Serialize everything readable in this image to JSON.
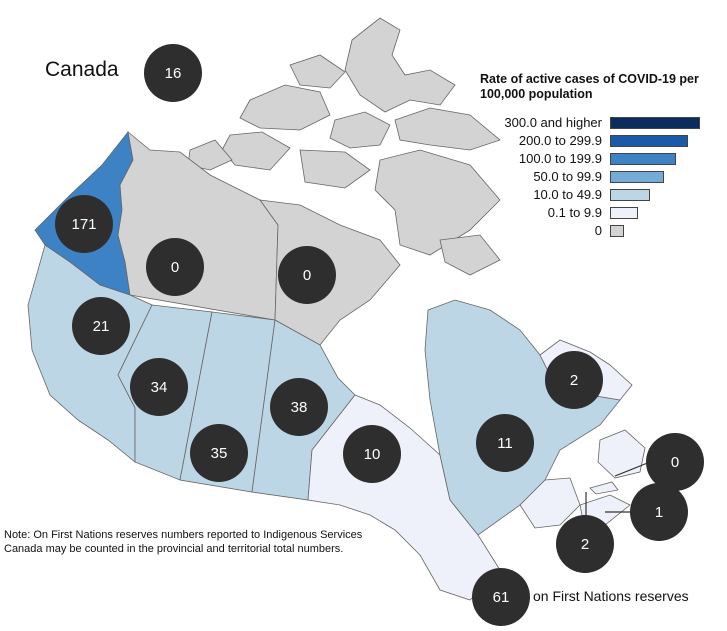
{
  "map": {
    "title": "Canada",
    "national_count": "16",
    "legend": {
      "title": "Rate of active cases of COVID-19 per 100,000 population",
      "items": [
        {
          "label": "300.0 and higher",
          "color": "#0b2d5e"
        },
        {
          "label": "200.0 to 299.9",
          "color": "#1b5aa8"
        },
        {
          "label": "100.0 to 199.9",
          "color": "#3c82c4"
        },
        {
          "label": "50.0 to 99.9",
          "color": "#74acd7"
        },
        {
          "label": "10.0 to 49.9",
          "color": "#bcd6e6"
        },
        {
          "label": "0.1 to 9.9",
          "color": "#eef0fa"
        },
        {
          "label": "0",
          "color": "#d3d3d3"
        }
      ]
    },
    "regions": [
      {
        "name": "Yukon",
        "count": "171",
        "color": "#3c82c4"
      },
      {
        "name": "Northwest Territories",
        "count": "0",
        "color": "#d3d3d3"
      },
      {
        "name": "Nunavut",
        "count": "0",
        "color": "#d3d3d3"
      },
      {
        "name": "British Columbia",
        "count": "21",
        "color": "#bcd6e6"
      },
      {
        "name": "Alberta",
        "count": "34",
        "color": "#bcd6e6"
      },
      {
        "name": "Saskatchewan",
        "count": "35",
        "color": "#bcd6e6"
      },
      {
        "name": "Manitoba",
        "count": "38",
        "color": "#bcd6e6"
      },
      {
        "name": "Ontario",
        "count": "10",
        "color": "#eef0fa"
      },
      {
        "name": "Quebec",
        "count": "11",
        "color": "#bcd6e6"
      },
      {
        "name": "Newfoundland and Labrador",
        "count": "2",
        "color": "#eef0fa"
      },
      {
        "name": "Prince Edward Island",
        "count": "0",
        "color": "#eef0fa"
      },
      {
        "name": "Nova Scotia",
        "count": "1",
        "color": "#eef0fa"
      },
      {
        "name": "New Brunswick",
        "count": "2",
        "color": "#eef0fa"
      }
    ],
    "first_nations": {
      "count": "61",
      "label": "on First Nations reserves"
    },
    "note": "Note: On First Nations reserves numbers reported to Indigenous Services Canada may be counted in the provincial and territorial total numbers."
  }
}
